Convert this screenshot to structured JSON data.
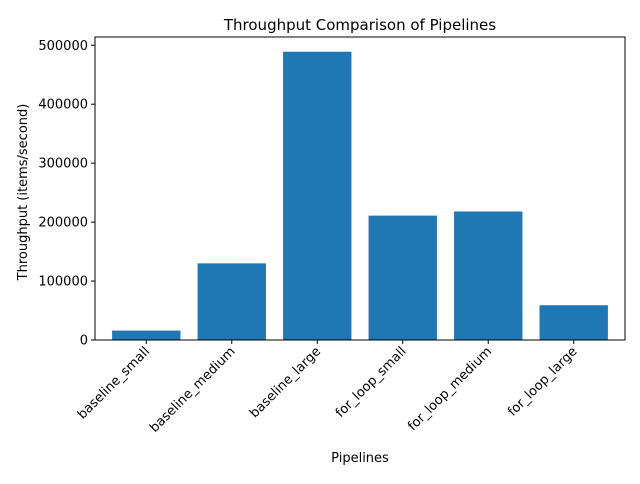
{
  "chart_data": {
    "type": "bar",
    "title": "Throughput Comparison of Pipelines",
    "xlabel": "Pipelines",
    "ylabel": "Throughput (items/second)",
    "categories": [
      "baseline_small",
      "baseline_medium",
      "baseline_large",
      "for_loop_small",
      "for_loop_medium",
      "for_loop_large"
    ],
    "values": [
      16000,
      130000,
      489000,
      211000,
      218000,
      59000
    ],
    "ylim": [
      0,
      514000
    ],
    "yticks": [
      0,
      100000,
      200000,
      300000,
      400000,
      500000
    ],
    "ytick_labels": [
      "0",
      "100000",
      "200000",
      "300000",
      "400000",
      "500000"
    ],
    "bar_color": "#1f77b4",
    "grid": false,
    "legend": "none"
  }
}
